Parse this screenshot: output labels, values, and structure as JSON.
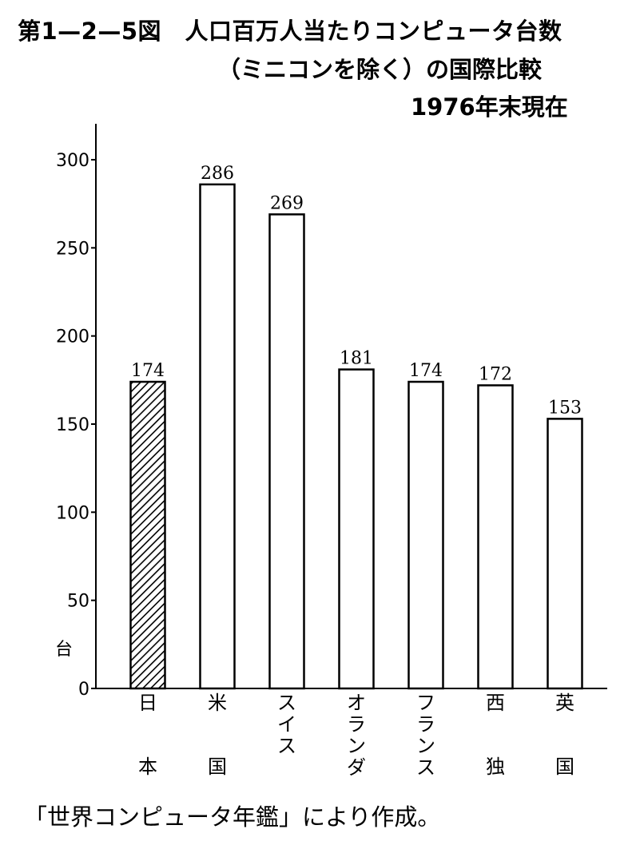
{
  "title": {
    "line1": "第1—2—5図　人口百万人当たりコンピュータ台数",
    "line2": "（ミニコンを除く）の国際比較",
    "line3": "1976年末現在"
  },
  "source": "「世界コンピュータ年鑑」により作成。",
  "chart_data": {
    "type": "bar",
    "title": "人口百万人当たりコンピュータ台数（ミニコンを除く）の国際比較 1976年末現在",
    "categories": [
      "日本",
      "米国",
      "スイス",
      "オランダ",
      "フランス",
      "西独",
      "英国"
    ],
    "category_lines": [
      [
        "日",
        "",
        "本"
      ],
      [
        "米",
        "",
        "国"
      ],
      [
        "ス",
        "イ",
        "ス"
      ],
      [
        "オ",
        "ラ",
        "ン",
        "ダ"
      ],
      [
        "フ",
        "ラ",
        "ン",
        "ス"
      ],
      [
        "西",
        "",
        "独"
      ],
      [
        "英",
        "",
        "国"
      ]
    ],
    "values": [
      174,
      286,
      269,
      181,
      174,
      172,
      153
    ],
    "data_labels": [
      "174",
      "286",
      "269",
      "181",
      "174",
      "172",
      "153"
    ],
    "highlight": [
      true,
      false,
      false,
      false,
      false,
      false,
      false
    ],
    "ylabel": "台",
    "xlabel": "",
    "ylim": [
      0,
      300
    ],
    "yticks": [
      0,
      50,
      100,
      150,
      200,
      250,
      300
    ],
    "grid": false,
    "colors": {
      "bar_fill": "#ffffff",
      "bar_stroke": "#000000",
      "hatch": "#000000"
    }
  }
}
